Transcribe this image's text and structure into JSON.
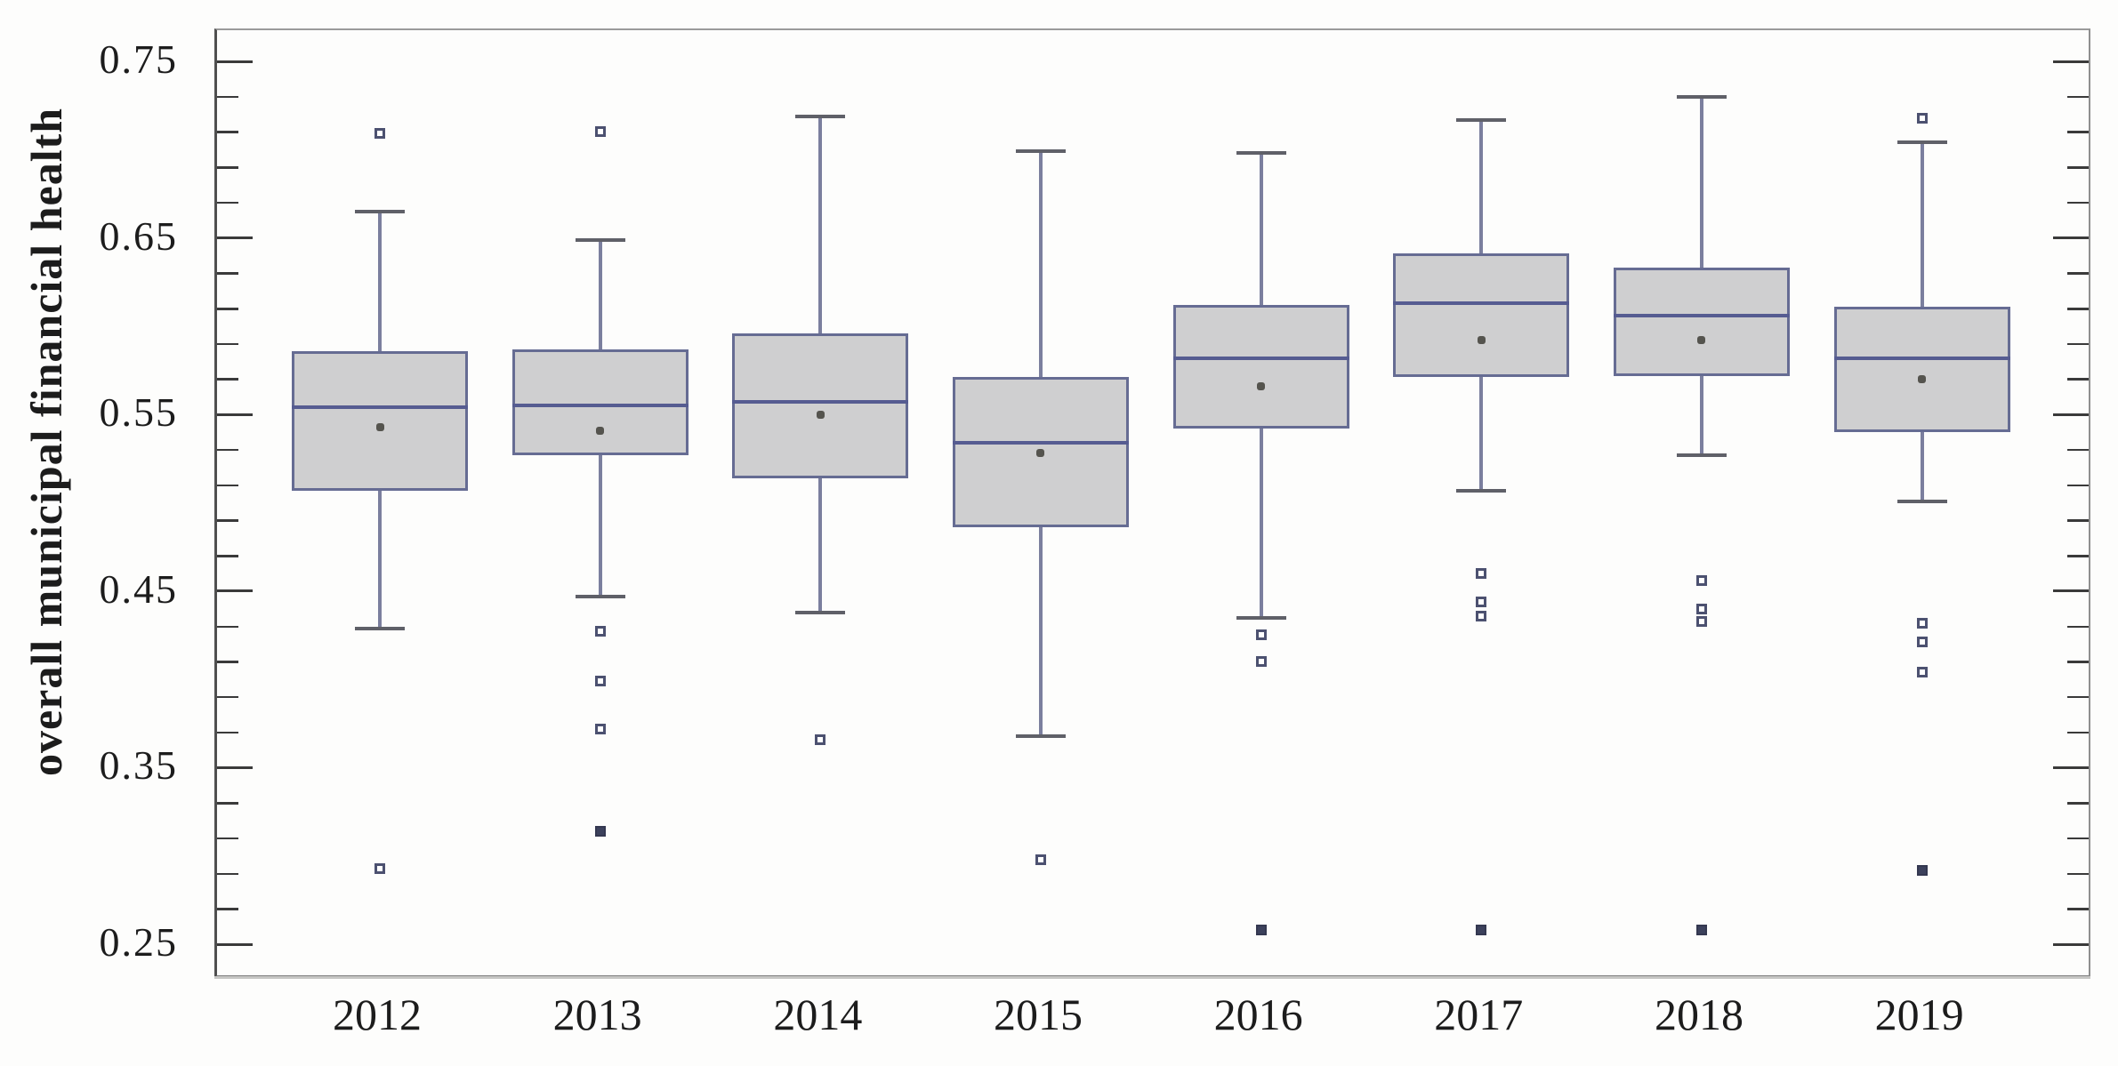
{
  "chart_data": {
    "type": "boxplot",
    "title": "",
    "ylabel": "overall municipal financial health",
    "xlabel": "",
    "categories": [
      "2012",
      "2013",
      "2014",
      "2015",
      "2016",
      "2017",
      "2018",
      "2019"
    ],
    "y_axis": {
      "min": 0.232,
      "max": 0.768,
      "major_ticks": [
        0.75,
        0.65,
        0.55,
        0.45,
        0.35,
        0.25
      ],
      "major_tick_labels": [
        "0.75",
        "0.65",
        "0.55",
        "0.45",
        "0.35",
        "0.25"
      ],
      "minor_tick_step": 0.02,
      "grid": false
    },
    "legend": "none",
    "series": [
      {
        "category": "2012",
        "whisker_low": 0.429,
        "q1": 0.507,
        "median": 0.554,
        "mean": 0.543,
        "q3": 0.586,
        "whisker_high": 0.665,
        "outliers": [
          0.709,
          0.293
        ],
        "outliers_filled": []
      },
      {
        "category": "2013",
        "whisker_low": 0.447,
        "q1": 0.527,
        "median": 0.555,
        "mean": 0.541,
        "q3": 0.587,
        "whisker_high": 0.649,
        "outliers": [
          0.71,
          0.427,
          0.399,
          0.372
        ],
        "outliers_filled": [
          0.314
        ]
      },
      {
        "category": "2014",
        "whisker_low": 0.438,
        "q1": 0.514,
        "median": 0.557,
        "mean": 0.55,
        "q3": 0.596,
        "whisker_high": 0.719,
        "outliers": [
          0.366
        ],
        "outliers_filled": []
      },
      {
        "category": "2015",
        "whisker_low": 0.368,
        "q1": 0.486,
        "median": 0.534,
        "mean": 0.528,
        "q3": 0.571,
        "whisker_high": 0.699,
        "outliers": [
          0.298
        ],
        "outliers_filled": []
      },
      {
        "category": "2016",
        "whisker_low": 0.435,
        "q1": 0.542,
        "median": 0.582,
        "mean": 0.566,
        "q3": 0.612,
        "whisker_high": 0.698,
        "outliers": [
          0.425,
          0.41
        ],
        "outliers_filled": [
          0.258
        ]
      },
      {
        "category": "2017",
        "whisker_low": 0.507,
        "q1": 0.571,
        "median": 0.613,
        "mean": 0.592,
        "q3": 0.641,
        "whisker_high": 0.717,
        "outliers": [
          0.46,
          0.444,
          0.436
        ],
        "outliers_filled": [
          0.258
        ]
      },
      {
        "category": "2018",
        "whisker_low": 0.527,
        "q1": 0.572,
        "median": 0.606,
        "mean": 0.592,
        "q3": 0.633,
        "whisker_high": 0.73,
        "outliers": [
          0.456,
          0.44,
          0.433
        ],
        "outliers_filled": [
          0.258
        ]
      },
      {
        "category": "2019",
        "whisker_low": 0.501,
        "q1": 0.54,
        "median": 0.582,
        "mean": 0.57,
        "q3": 0.611,
        "whisker_high": 0.704,
        "outliers": [
          0.718,
          0.432,
          0.421,
          0.404
        ],
        "outliers_filled": [
          0.292
        ]
      }
    ]
  },
  "colors": {
    "box_fill": "#cfcfd0",
    "box_border": "#666c93",
    "median_line": "#565c91",
    "whisker_stem": "#7b7f9e",
    "whisker_cap": "#5f6068",
    "mean_marker": "#55544e",
    "outlier_border": "#4c5170",
    "outlier_fill_solid": "#3c415c",
    "axis_line": "#4f4f4f",
    "tick": "#3a3a3a",
    "label_text": "#1c1c1c",
    "frame": "#9a9a9a"
  }
}
